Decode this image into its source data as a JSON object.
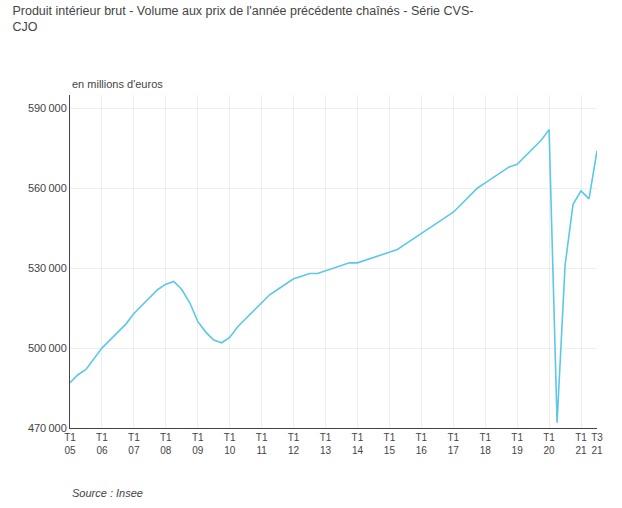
{
  "chart_data": {
    "type": "line",
    "title": "Produit intérieur brut - Volume aux prix de l'année précédente chaînés - Série CVS-\nCJO",
    "ylabel": "en millions d'euros",
    "annotations": [
      "Source : Insee"
    ],
    "color": "#5bc8e8",
    "grid": true,
    "ylim": [
      470000,
      595000
    ],
    "yticks": [
      {
        "value": 470000,
        "label": "470 000"
      },
      {
        "value": 500000,
        "label": "500 000"
      },
      {
        "value": 530000,
        "label": "530 000"
      },
      {
        "value": 560000,
        "label": "560 000"
      },
      {
        "value": 590000,
        "label": "590 000"
      }
    ],
    "categories": [
      "T1\n05",
      null,
      null,
      null,
      "T1\n06",
      null,
      null,
      null,
      "T1\n07",
      null,
      null,
      null,
      "T1\n08",
      null,
      null,
      null,
      "T1\n09",
      null,
      null,
      null,
      "T1\n10",
      null,
      null,
      null,
      "T1\n11",
      null,
      null,
      null,
      "T1\n12",
      null,
      null,
      null,
      "T1\n13",
      null,
      null,
      null,
      "T1\n14",
      null,
      null,
      null,
      "T1\n15",
      null,
      null,
      null,
      "T1\n16",
      null,
      null,
      null,
      "T1\n17",
      null,
      null,
      null,
      "T1\n18",
      null,
      null,
      null,
      "T1\n19",
      null,
      null,
      null,
      "T1\n20",
      null,
      null,
      null,
      "T1\n21",
      null,
      "T3\n21"
    ],
    "values": [
      487000,
      490000,
      492000,
      496000,
      500000,
      503000,
      506000,
      509000,
      513000,
      516000,
      519000,
      522000,
      524000,
      525000,
      522000,
      517000,
      510000,
      506000,
      503000,
      502000,
      504000,
      508000,
      511000,
      514000,
      517000,
      520000,
      522000,
      524000,
      526000,
      527000,
      528000,
      528000,
      529000,
      530000,
      531000,
      532000,
      532000,
      533000,
      534000,
      535000,
      536000,
      537000,
      539000,
      541000,
      543000,
      545000,
      547000,
      549000,
      551000,
      554000,
      557000,
      560000,
      562000,
      564000,
      566000,
      568000,
      569000,
      572000,
      575000,
      578000,
      582000,
      472000,
      531000,
      554000,
      559000,
      556000,
      574000
    ]
  }
}
